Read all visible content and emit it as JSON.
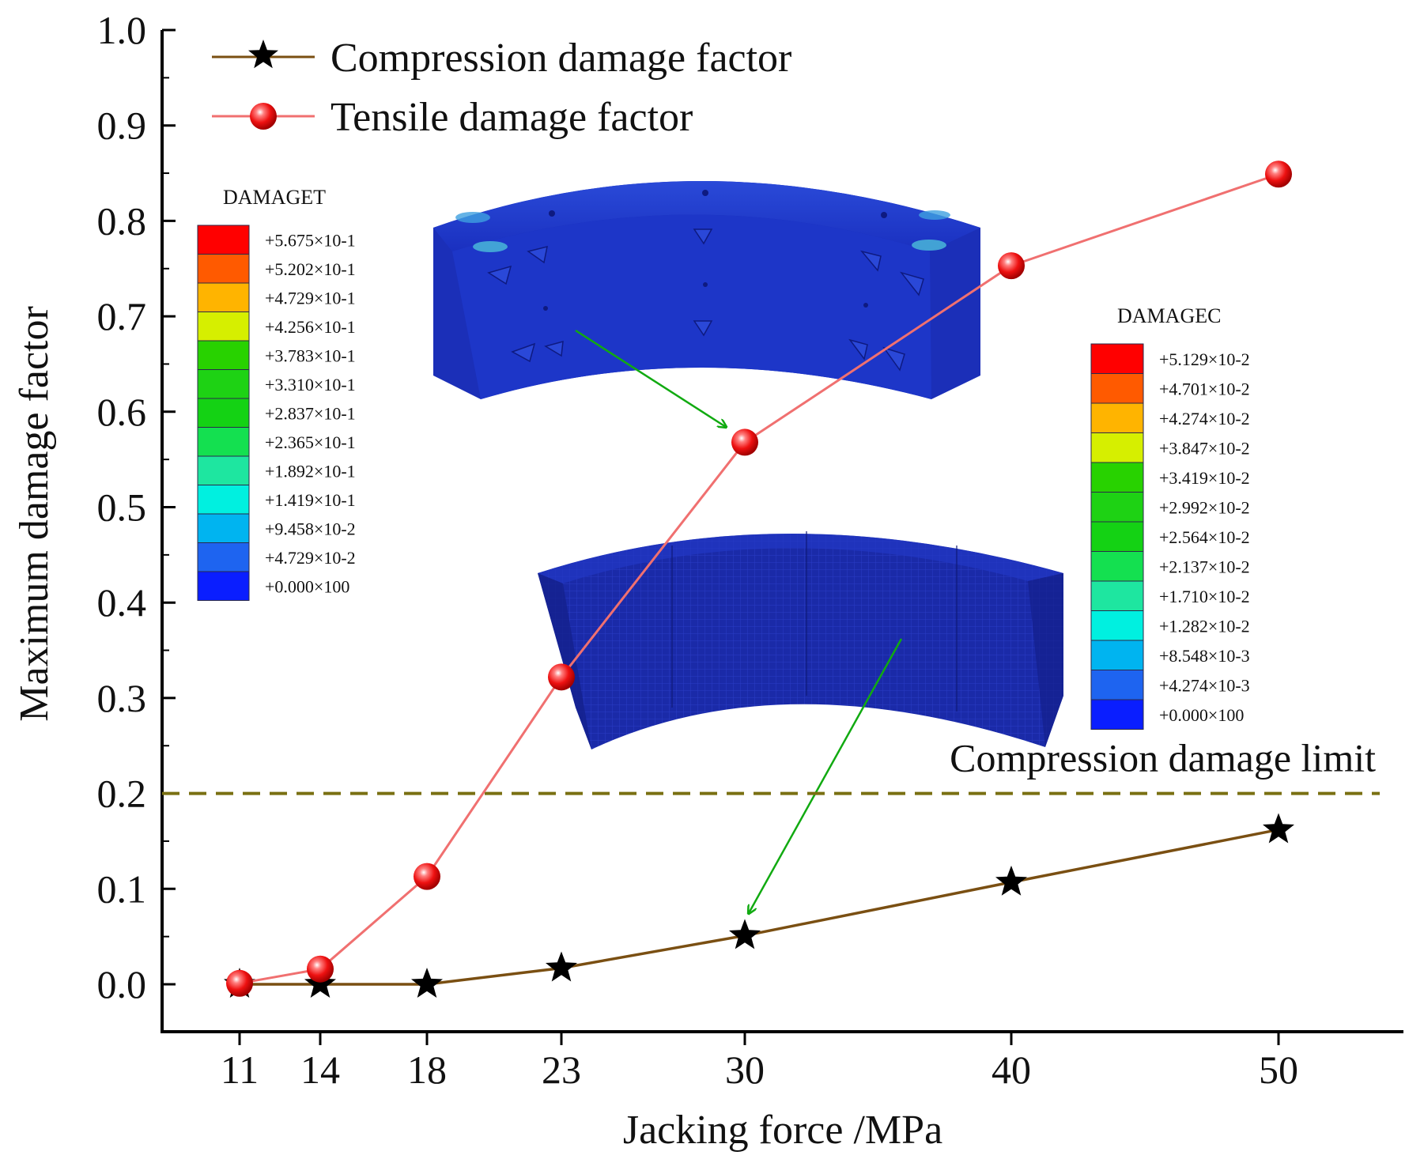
{
  "chart_data": {
    "type": "line",
    "x": [
      11,
      14,
      18,
      23,
      30,
      40,
      50
    ],
    "x_tick_labels": [
      "11",
      "14",
      "18",
      "23",
      "30",
      "40",
      "50"
    ],
    "y_tick_labels": [
      "0.0",
      "0.1",
      "0.2",
      "0.3",
      "0.4",
      "0.5",
      "0.6",
      "0.7",
      "0.8",
      "0.9",
      "1.0"
    ],
    "xlabel": "Jacking force /MPa",
    "ylabel": "Maximum damage factor",
    "ylim": [
      0,
      1.0
    ],
    "grid": false,
    "legend_position": "top-left",
    "series": [
      {
        "name": "Compression damage factor",
        "marker": "star",
        "color": "#7a4f12",
        "marker_color": "#000000",
        "values": [
          0.0,
          0.0,
          0.0,
          0.017,
          0.051,
          0.107,
          0.162
        ]
      },
      {
        "name": "Tensile damage factor",
        "marker": "sphere",
        "color": "#f07070",
        "marker_color": "#ee1111",
        "values": [
          0.001,
          0.016,
          0.113,
          0.322,
          0.568,
          0.753,
          0.849
        ]
      }
    ],
    "reference_line": {
      "label": "Compression damage limit",
      "y": 0.2,
      "color": "#7a7012",
      "style": "dashed"
    }
  },
  "insets": {
    "tensile_colorbar": {
      "title": "DAMAGET",
      "labels": [
        "+5.675×10-1",
        "+5.202×10-1",
        "+4.729×10-1",
        "+4.256×10-1",
        "+3.783×10-1",
        "+3.310×10-1",
        "+2.837×10-1",
        "+2.365×10-1",
        "+1.892×10-1",
        "+1.419×10-1",
        "+9.458×10-2",
        "+4.729×10-2",
        "+0.000×100"
      ]
    },
    "compression_colorbar": {
      "title": "DAMAGEC",
      "labels": [
        "+5.129×10-2",
        "+4.701×10-2",
        "+4.274×10-2",
        "+3.847×10-2",
        "+3.419×10-2",
        "+2.992×10-2",
        "+2.564×10-2",
        "+2.137×10-2",
        "+1.710×10-2",
        "+1.282×10-2",
        "+8.548×10-3",
        "+4.274×10-3",
        "+0.000×100"
      ]
    },
    "colorbar_colors": [
      "#ff0000",
      "#ff5a00",
      "#ffb400",
      "#d6ef00",
      "#28d200",
      "#1ed214",
      "#14d214",
      "#14e050",
      "#1ee6a0",
      "#00f0e0",
      "#00b4f0",
      "#1e64f0",
      "#0a1eff"
    ],
    "arrow_color": "#11aa11",
    "segment_color": "#1a2fbf"
  }
}
